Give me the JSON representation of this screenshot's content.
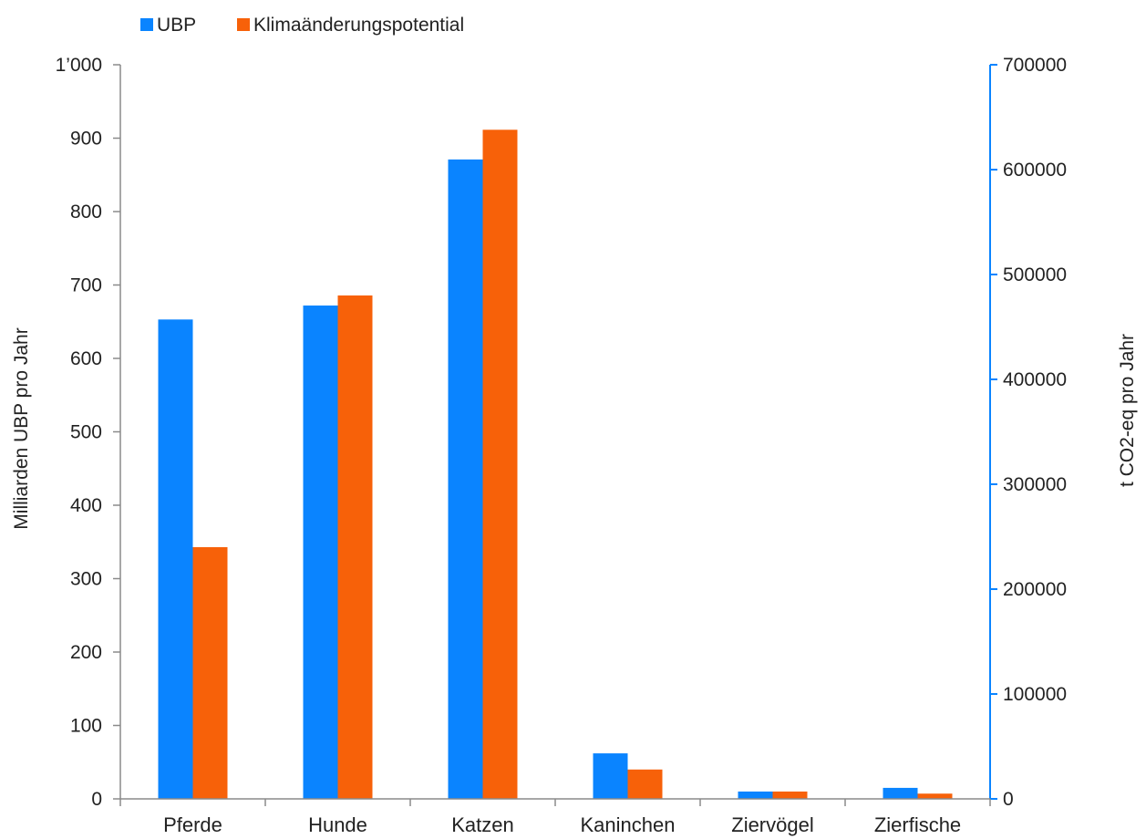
{
  "chart_data": {
    "type": "bar",
    "categories": [
      "Pferde",
      "Hunde",
      "Katzen",
      "Kaninchen",
      "Ziervögel",
      "Zierfische"
    ],
    "series": [
      {
        "name": "UBP",
        "axis": "left",
        "color": "#0A84FF",
        "values": [
          653,
          672,
          871,
          62,
          10,
          15
        ]
      },
      {
        "name": "Klimaänderungspotential",
        "axis": "right",
        "color": "#F76109",
        "values": [
          240000,
          480000,
          638000,
          28000,
          7000,
          5000
        ]
      }
    ],
    "left_axis": {
      "label": "Milliarden UBP pro Jahr",
      "ylim": [
        0,
        1000
      ],
      "ticks": [
        0,
        100,
        200,
        300,
        400,
        500,
        600,
        700,
        800,
        900,
        1000
      ],
      "tick_labels": [
        "0",
        "100",
        "200",
        "300",
        "400",
        "500",
        "600",
        "700",
        "800",
        "900",
        "1’000"
      ]
    },
    "right_axis": {
      "label": "t CO2-eq pro Jahr",
      "ylim": [
        0,
        700000
      ],
      "ticks": [
        0,
        100000,
        200000,
        300000,
        400000,
        500000,
        600000,
        700000
      ],
      "tick_labels": [
        "0",
        "100000",
        "200000",
        "300000",
        "400000",
        "500000",
        "600000",
        "700000"
      ],
      "color": "#0A84FF"
    },
    "grid": false,
    "legend": "top-left"
  }
}
